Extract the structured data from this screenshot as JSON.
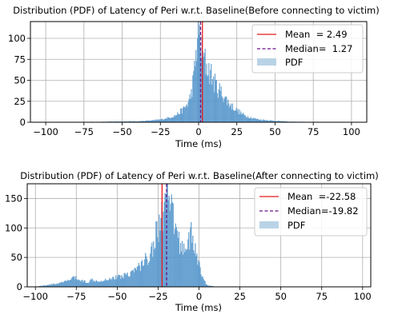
{
  "chart_data": [
    {
      "type": "histogram",
      "title": "Distribution (PDF) of Latency of Peri w.r.t. Baseline(Before connecting to victim)",
      "xlabel": "Time (ms)",
      "ylabel": "",
      "xlim": [
        -110,
        110
      ],
      "ylim": [
        0,
        120
      ],
      "xticks": [
        -100,
        -75,
        -50,
        -25,
        0,
        25,
        50,
        75,
        100
      ],
      "yticks": [
        0,
        25,
        50,
        75,
        100
      ],
      "xtick_labels": [
        "−100",
        "−75",
        "−50",
        "−25",
        "0",
        "25",
        "50",
        "75",
        "100"
      ],
      "ytick_labels": [
        "0",
        "25",
        "50",
        "75",
        "100"
      ],
      "grid": true,
      "legend": {
        "placement": "top-right",
        "entries": [
          {
            "label": "Mean  = 2.49",
            "style": "solid",
            "color": "#e41a1c"
          },
          {
            "label": "Median=  1.27",
            "style": "dashed",
            "color": "#6a0f8a"
          },
          {
            "label": "PDF",
            "style": "patch",
            "color": "#b9d3e6"
          }
        ]
      },
      "mean": 2.49,
      "median": 1.27,
      "bar_color": "#5b9bd0",
      "bin_width": 0.5,
      "profile": [
        [
          -100,
          0
        ],
        [
          -60,
          0.5
        ],
        [
          -40,
          1
        ],
        [
          -30,
          2
        ],
        [
          -25,
          3
        ],
        [
          -20,
          5
        ],
        [
          -15,
          8
        ],
        [
          -10,
          15
        ],
        [
          -7,
          22
        ],
        [
          -5,
          32
        ],
        [
          -3,
          55
        ],
        [
          -2,
          75
        ],
        [
          -1,
          95
        ],
        [
          0,
          108
        ],
        [
          1,
          100
        ],
        [
          2,
          85
        ],
        [
          3,
          78
        ],
        [
          5,
          68
        ],
        [
          8,
          58
        ],
        [
          10,
          48
        ],
        [
          12,
          42
        ],
        [
          15,
          35
        ],
        [
          20,
          22
        ],
        [
          25,
          14
        ],
        [
          30,
          8
        ],
        [
          35,
          5
        ],
        [
          40,
          3
        ],
        [
          50,
          1.5
        ],
        [
          60,
          0.5
        ],
        [
          100,
          0
        ]
      ]
    },
    {
      "type": "histogram",
      "title": "Distribution (PDF) of Latency of Peri w.r.t. Baseline(After connecting to victim)",
      "xlabel": "Time (ms)",
      "ylabel": "",
      "xlim": [
        -105,
        105
      ],
      "ylim": [
        0,
        175
      ],
      "xticks": [
        -100,
        -75,
        -50,
        -25,
        0,
        25,
        50,
        75,
        100
      ],
      "yticks": [
        0,
        50,
        100,
        150
      ],
      "xtick_labels": [
        "−100",
        "−75",
        "−50",
        "−25",
        "0",
        "25",
        "50",
        "75",
        "100"
      ],
      "ytick_labels": [
        "0",
        "50",
        "100",
        "150"
      ],
      "grid": true,
      "legend": {
        "placement": "top-right",
        "entries": [
          {
            "label": "Mean  =-22.58",
            "style": "solid",
            "color": "#e41a1c"
          },
          {
            "label": "Median=-19.82",
            "style": "dashed",
            "color": "#6a0f8a"
          },
          {
            "label": "PDF",
            "style": "patch",
            "color": "#b9d3e6"
          }
        ]
      },
      "mean": -22.58,
      "median": -19.82,
      "bar_color": "#5b9bd0",
      "bin_width": 0.5,
      "profile": [
        [
          -100,
          0
        ],
        [
          -95,
          2
        ],
        [
          -90,
          4
        ],
        [
          -85,
          6
        ],
        [
          -80,
          10
        ],
        [
          -77,
          16
        ],
        [
          -75,
          14
        ],
        [
          -72,
          10
        ],
        [
          -68,
          8
        ],
        [
          -65,
          12
        ],
        [
          -60,
          10
        ],
        [
          -55,
          14
        ],
        [
          -50,
          16
        ],
        [
          -45,
          20
        ],
        [
          -40,
          26
        ],
        [
          -35,
          38
        ],
        [
          -30,
          55
        ],
        [
          -27,
          80
        ],
        [
          -24,
          110
        ],
        [
          -22,
          125
        ],
        [
          -20,
          150
        ],
        [
          -18,
          140
        ],
        [
          -16,
          120
        ],
        [
          -14,
          95
        ],
        [
          -12,
          75
        ],
        [
          -10,
          65
        ],
        [
          -8,
          70
        ],
        [
          -6,
          85
        ],
        [
          -5,
          88
        ],
        [
          -3,
          70
        ],
        [
          -1,
          50
        ],
        [
          1,
          25
        ],
        [
          3,
          10
        ],
        [
          5,
          3
        ],
        [
          8,
          1
        ],
        [
          12,
          0
        ],
        [
          100,
          0
        ]
      ]
    }
  ]
}
